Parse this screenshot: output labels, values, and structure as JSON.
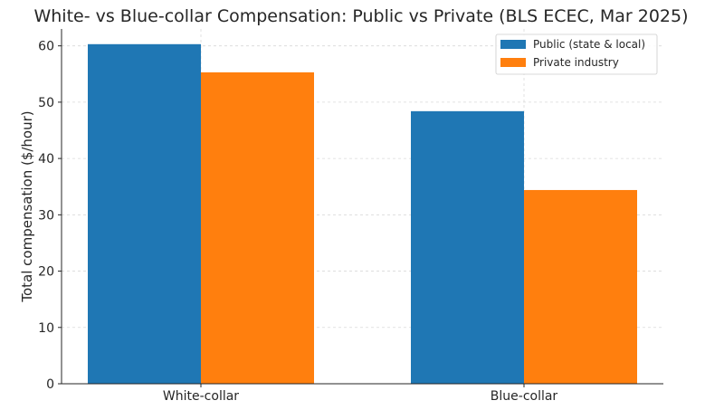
{
  "chart_data": {
    "type": "bar",
    "title": "White- vs Blue-collar Compensation: Public vs Private (BLS ECEC, Mar 2025)",
    "xlabel": "",
    "ylabel": "Total compensation ($/hour)",
    "categories": [
      "White-collar",
      "Blue-collar"
    ],
    "series": [
      {
        "name": "Public (state & local)",
        "color": "#1f77b4",
        "values": [
          60.3,
          48.4
        ]
      },
      {
        "name": "Private industry",
        "color": "#ff7f0e",
        "values": [
          55.3,
          34.4
        ]
      }
    ],
    "ylim": [
      0,
      63
    ],
    "yticks": [
      0,
      10,
      20,
      30,
      40,
      50,
      60
    ],
    "grid": true,
    "legend_position": "top-right"
  }
}
